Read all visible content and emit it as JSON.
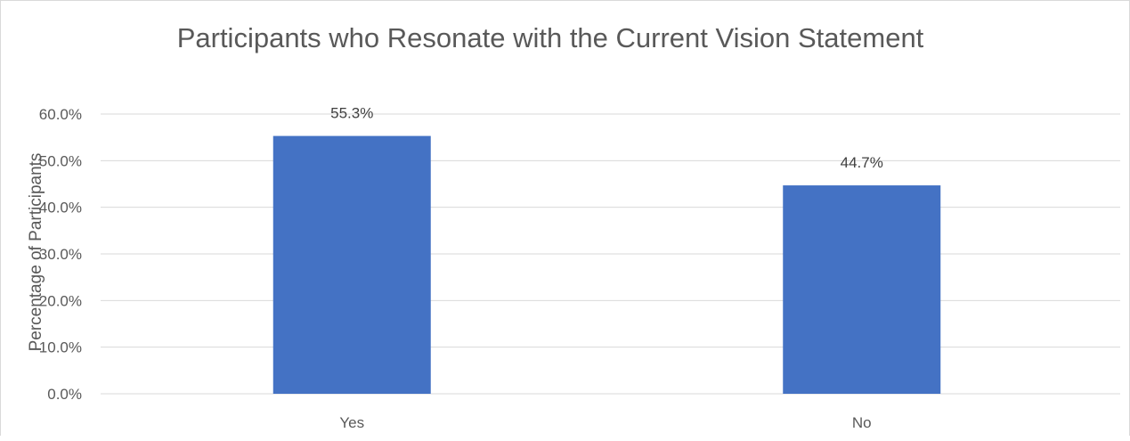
{
  "chart_data": {
    "type": "bar",
    "title": "Participants who Resonate with the Current Vision Statement",
    "xlabel": "",
    "ylabel": "Percentage of Participants",
    "categories": [
      "Yes",
      "No"
    ],
    "values": [
      55.3,
      44.7
    ],
    "data_labels": [
      "55.3%",
      "44.7%"
    ],
    "ylim": [
      0,
      60
    ],
    "yticks": [
      0,
      10,
      20,
      30,
      40,
      50,
      60
    ],
    "ytick_labels": [
      "0.0%",
      "10.0%",
      "20.0%",
      "30.0%",
      "40.0%",
      "50.0%",
      "60.0%"
    ],
    "grid": true,
    "legend": "none",
    "colors": {
      "bar": "#4472c4",
      "grid": "#d9d9d9",
      "text": "#595959"
    }
  }
}
